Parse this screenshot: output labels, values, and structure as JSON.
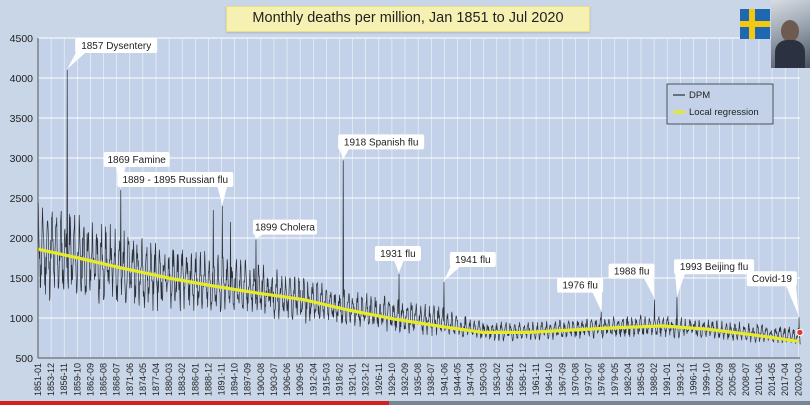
{
  "chart_data": {
    "type": "line",
    "title": "Monthly deaths per million, Jan 1851 to Jul 2020",
    "ylim": [
      500,
      4500
    ],
    "y_ticks": [
      500,
      1000,
      1500,
      2000,
      2500,
      3000,
      3500,
      4000,
      4500
    ],
    "x_range": [
      "1851-01",
      "2020-07"
    ],
    "x_tick_labels": [
      "1851-01",
      "1853-12",
      "1856-11",
      "1859-10",
      "1862-09",
      "1865-08",
      "1868-07",
      "1871-06",
      "1874-05",
      "1877-04",
      "1880-03",
      "1883-02",
      "1886-01",
      "1888-12",
      "1891-11",
      "1894-10",
      "1897-09",
      "1900-08",
      "1903-07",
      "1906-06",
      "1909-05",
      "1912-04",
      "1915-03",
      "1918-02",
      "1921-01",
      "1923-12",
      "1926-11",
      "1929-10",
      "1932-09",
      "1935-08",
      "1938-07",
      "1941-06",
      "1944-05",
      "1947-04",
      "1950-03",
      "1953-02",
      "1956-01",
      "1958-12",
      "1961-11",
      "1964-10",
      "1967-09",
      "1970-08",
      "1973-07",
      "1976-06",
      "1979-05",
      "1982-04",
      "1985-03",
      "1988-02",
      "1991-01",
      "1993-12",
      "1996-11",
      "1999-10",
      "2002-09",
      "2005-08",
      "2008-07",
      "2011-06",
      "2014-05",
      "2017-04",
      "2020-03"
    ],
    "grid": true,
    "legend_position": "top-right",
    "series": [
      {
        "name": "DPM",
        "color": "#2b2f36",
        "envelope": [
          {
            "year": 1851,
            "low": 1250,
            "high": 2450
          },
          {
            "year": 1860,
            "low": 1200,
            "high": 2300
          },
          {
            "year": 1870,
            "low": 1150,
            "high": 2100
          },
          {
            "year": 1880,
            "low": 1100,
            "high": 1900
          },
          {
            "year": 1890,
            "low": 1050,
            "high": 1800
          },
          {
            "year": 1900,
            "low": 1000,
            "high": 1700
          },
          {
            "year": 1910,
            "low": 950,
            "high": 1500
          },
          {
            "year": 1920,
            "low": 880,
            "high": 1350
          },
          {
            "year": 1930,
            "low": 820,
            "high": 1250
          },
          {
            "year": 1940,
            "low": 770,
            "high": 1150
          },
          {
            "year": 1950,
            "low": 720,
            "high": 950
          },
          {
            "year": 1960,
            "low": 720,
            "high": 950
          },
          {
            "year": 1970,
            "low": 740,
            "high": 980
          },
          {
            "year": 1980,
            "low": 760,
            "high": 1020
          },
          {
            "year": 1990,
            "low": 760,
            "high": 1030
          },
          {
            "year": 2000,
            "low": 740,
            "high": 980
          },
          {
            "year": 2010,
            "low": 700,
            "high": 930
          },
          {
            "year": 2020,
            "low": 660,
            "high": 880
          }
        ],
        "spikes": [
          {
            "year": 1857.5,
            "value": 4100
          },
          {
            "year": 1869.4,
            "value": 2600
          },
          {
            "year": 1890.0,
            "value": 2350
          },
          {
            "year": 1892.0,
            "value": 2400
          },
          {
            "year": 1893.8,
            "value": 2200
          },
          {
            "year": 1899.5,
            "value": 1980
          },
          {
            "year": 1918.9,
            "value": 2970
          },
          {
            "year": 1931.3,
            "value": 1550
          },
          {
            "year": 1941.3,
            "value": 1450
          },
          {
            "year": 1976.3,
            "value": 1080
          },
          {
            "year": 1988.2,
            "value": 1230
          },
          {
            "year": 1993.2,
            "value": 1260
          },
          {
            "year": 2020.3,
            "value": 1010
          }
        ]
      },
      {
        "name": "Local regression",
        "color": "#e6ea2a",
        "points": [
          {
            "year": 1851,
            "value": 1860
          },
          {
            "year": 1860,
            "value": 1750
          },
          {
            "year": 1870,
            "value": 1620
          },
          {
            "year": 1880,
            "value": 1500
          },
          {
            "year": 1890,
            "value": 1400
          },
          {
            "year": 1900,
            "value": 1310
          },
          {
            "year": 1910,
            "value": 1230
          },
          {
            "year": 1920,
            "value": 1100
          },
          {
            "year": 1930,
            "value": 990
          },
          {
            "year": 1940,
            "value": 900
          },
          {
            "year": 1950,
            "value": 820
          },
          {
            "year": 1960,
            "value": 820
          },
          {
            "year": 1970,
            "value": 850
          },
          {
            "year": 1980,
            "value": 880
          },
          {
            "year": 1990,
            "value": 900
          },
          {
            "year": 2000,
            "value": 860
          },
          {
            "year": 2010,
            "value": 790
          },
          {
            "year": 2020,
            "value": 710
          }
        ]
      }
    ],
    "annotations": [
      {
        "text": "1857 Dysentery",
        "year": 1857.5,
        "value": 4100
      },
      {
        "text": "1869 Famine",
        "year": 1869.4,
        "value": 2600
      },
      {
        "text": "1889 - 1895 Russian flu",
        "year": 1892.0,
        "value": 2400
      },
      {
        "text": "1899 Cholera",
        "year": 1899.5,
        "value": 1980
      },
      {
        "text": "1918 Spanish flu",
        "year": 1918.9,
        "value": 2970
      },
      {
        "text": "1931 flu",
        "year": 1931.3,
        "value": 1550
      },
      {
        "text": "1941 flu",
        "year": 1941.3,
        "value": 1450
      },
      {
        "text": "1976 flu",
        "year": 1976.3,
        "value": 1080
      },
      {
        "text": "1988 flu",
        "year": 1988.2,
        "value": 1230
      },
      {
        "text": "1993 Beijing flu",
        "year": 1993.2,
        "value": 1260
      },
      {
        "text": "Covid-19",
        "year": 2020.3,
        "value": 1010
      }
    ]
  },
  "player": {
    "progress": 0.48
  },
  "colors": {
    "background": "#c9d6e8",
    "grid": "#ffffff",
    "callout": "#ffffff"
  },
  "icons": {
    "flag": "sweden-flag-icon",
    "presenter": "presenter-webcam"
  }
}
